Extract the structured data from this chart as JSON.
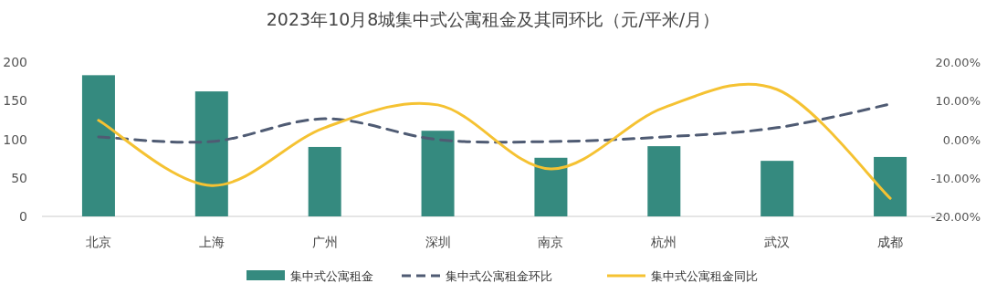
{
  "chart_data": {
    "type": "bar",
    "title": "2023年10月8城集中式公寓租金及其同环比（元/平米/月）",
    "categories": [
      "北京",
      "上海",
      "广州",
      "深圳",
      "南京",
      "杭州",
      "武汉",
      "成都"
    ],
    "series": [
      {
        "name": "集中式公寓租金",
        "color": "#358a7f",
        "values": [
          183,
          162,
          90,
          111,
          76,
          91,
          72,
          77
        ]
      },
      {
        "name": "集中式公寓租金环比",
        "type": "line",
        "axis": "y2",
        "line_style": "dashed",
        "color": "#4f5b73",
        "values": [
          0.6,
          -0.6,
          5.3,
          -0.1,
          -0.6,
          0.6,
          3,
          9.1
        ]
      },
      {
        "name": "集中式公寓租金同比",
        "type": "line",
        "axis": "y2",
        "line_style": "solid",
        "color": "#f5c232",
        "values": [
          4.9,
          -12,
          3,
          8.9,
          -7.7,
          8.2,
          12.9,
          -15.3
        ]
      }
    ],
    "ylim": [
      0,
      200
    ],
    "yticks": [
      0,
      50,
      100,
      150,
      200
    ],
    "y2lim": [
      -20,
      20
    ],
    "y2ticks": [
      {
        "value": -20,
        "label": "-20.00%"
      },
      {
        "value": -10,
        "label": "-10.00%"
      },
      {
        "value": 0,
        "label": "0.00%"
      },
      {
        "value": 10,
        "label": "10.00%"
      },
      {
        "value": 20,
        "label": "20.00%"
      }
    ],
    "grid": false,
    "legend": "bottom"
  }
}
